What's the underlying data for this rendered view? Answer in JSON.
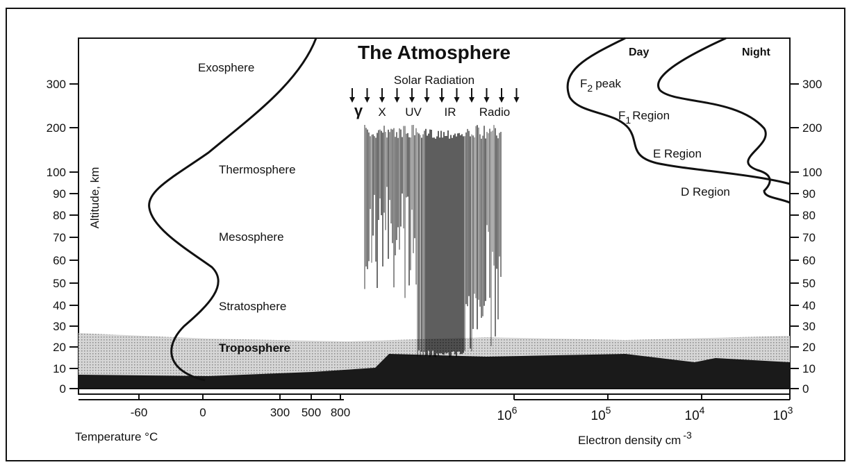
{
  "title": "The Atmosphere",
  "solar": {
    "label": "Solar Radiation",
    "bands": [
      "γ",
      "X",
      "UV",
      "IR",
      "Radio"
    ]
  },
  "layers": [
    "Exosphere",
    "Thermosphere",
    "Mesosphere",
    "Stratosphere",
    "Troposphere"
  ],
  "ionosphere": {
    "day": "Day",
    "night": "Night",
    "f2": {
      "letter": "F",
      "sub": "2",
      "rest": "peak"
    },
    "f1": {
      "letter": "F",
      "sub": "1",
      "rest": "Region"
    },
    "e": "E Region",
    "d": "D Region"
  },
  "y_axis": {
    "label": "Altitude, km",
    "ticks": [
      "0",
      "10",
      "20",
      "30",
      "40",
      "50",
      "60",
      "70",
      "80",
      "90",
      "100",
      "200",
      "300"
    ]
  },
  "temperature_axis": {
    "label": "Temperature °C",
    "ticks": [
      "-60",
      "0",
      "300",
      "500",
      "800"
    ]
  },
  "density_axis": {
    "label": "Electron density cm",
    "label_exp": "-3",
    "ticks": [
      {
        "base": "10",
        "exp": "6"
      },
      {
        "base": "10",
        "exp": "5"
      },
      {
        "base": "10",
        "exp": "4"
      },
      {
        "base": "10",
        "exp": "3"
      }
    ]
  }
}
